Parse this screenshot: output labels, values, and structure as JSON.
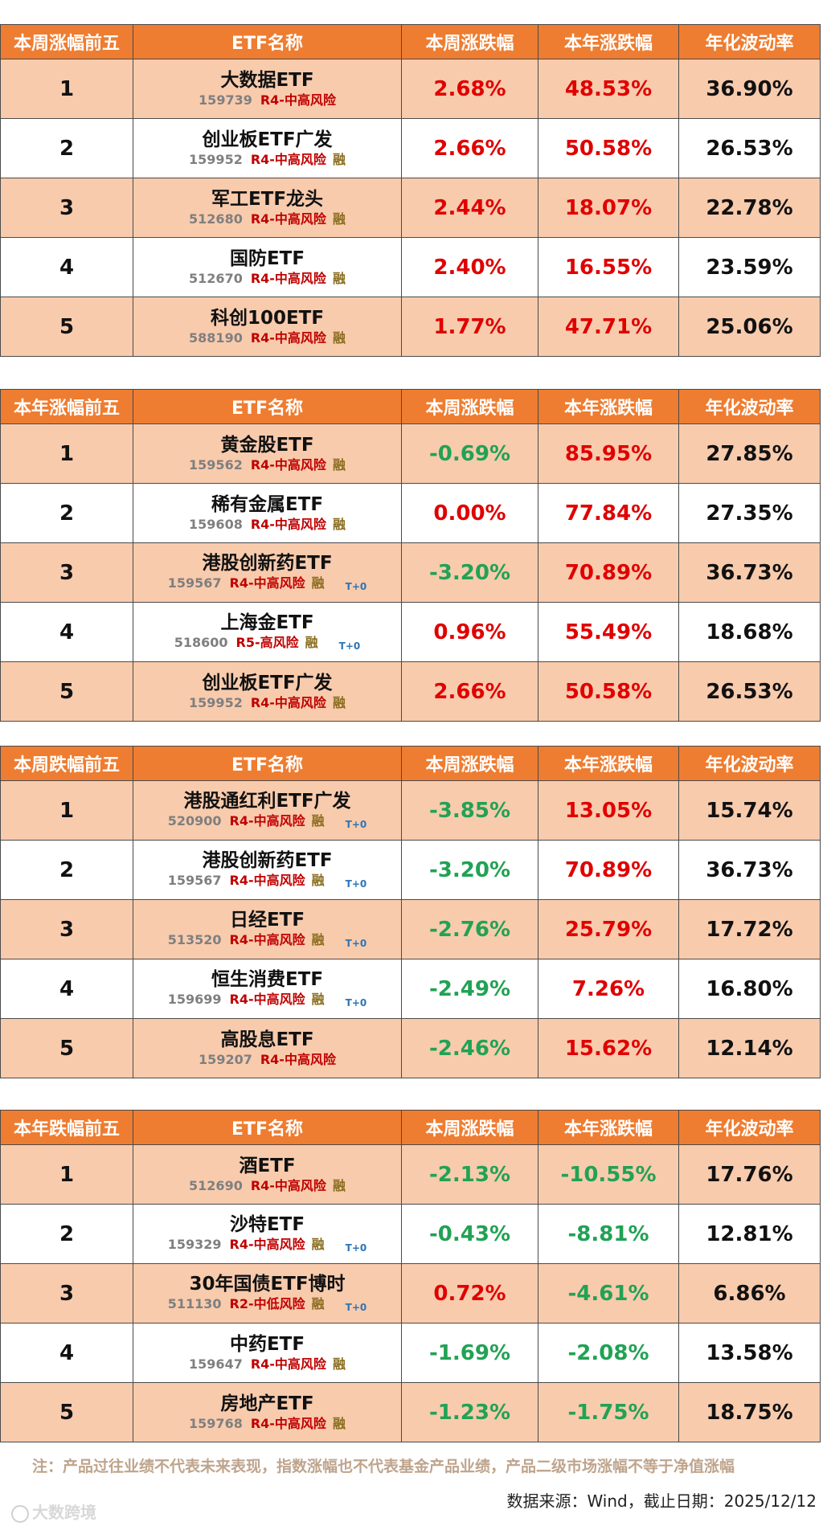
{
  "headers": [
    "ETF名称",
    "本周涨跌幅",
    "本年涨跌幅",
    "年化波动率"
  ],
  "tables": [
    {
      "title": "本周涨幅前五",
      "rows": [
        {
          "rank": "1",
          "name": "大数据ETF",
          "code": "159739",
          "risk": "R4-中高风险",
          "rong": "",
          "t0": "",
          "week": "2.68%",
          "year": "48.53%",
          "vol": "36.90%"
        },
        {
          "rank": "2",
          "name": "创业板ETF广发",
          "code": "159952",
          "risk": "R4-中高风险",
          "rong": "融",
          "t0": "",
          "week": "2.66%",
          "year": "50.58%",
          "vol": "26.53%"
        },
        {
          "rank": "3",
          "name": "军工ETF龙头",
          "code": "512680",
          "risk": "R4-中高风险",
          "rong": "融",
          "t0": "",
          "week": "2.44%",
          "year": "18.07%",
          "vol": "22.78%"
        },
        {
          "rank": "4",
          "name": "国防ETF",
          "code": "512670",
          "risk": "R4-中高风险",
          "rong": "融",
          "t0": "",
          "week": "2.40%",
          "year": "16.55%",
          "vol": "23.59%"
        },
        {
          "rank": "5",
          "name": "科创100ETF",
          "code": "588190",
          "risk": "R4-中高风险",
          "rong": "融",
          "t0": "",
          "week": "1.77%",
          "year": "47.71%",
          "vol": "25.06%"
        }
      ]
    },
    {
      "title": "本年涨幅前五",
      "rows": [
        {
          "rank": "1",
          "name": "黄金股ETF",
          "code": "159562",
          "risk": "R4-中高风险",
          "rong": "融",
          "t0": "",
          "week": "-0.69%",
          "year": "85.95%",
          "vol": "27.85%"
        },
        {
          "rank": "2",
          "name": "稀有金属ETF",
          "code": "159608",
          "risk": "R4-中高风险",
          "rong": "融",
          "t0": "",
          "week": "0.00%",
          "year": "77.84%",
          "vol": "27.35%"
        },
        {
          "rank": "3",
          "name": "港股创新药ETF",
          "code": "159567",
          "risk": "R4-中高风险",
          "rong": "融",
          "t0": "T+0",
          "week": "-3.20%",
          "year": "70.89%",
          "vol": "36.73%"
        },
        {
          "rank": "4",
          "name": "上海金ETF",
          "code": "518600",
          "risk": "R5-高风险",
          "rong": "融",
          "t0": "T+0",
          "week": "0.96%",
          "year": "55.49%",
          "vol": "18.68%"
        },
        {
          "rank": "5",
          "name": "创业板ETF广发",
          "code": "159952",
          "risk": "R4-中高风险",
          "rong": "融",
          "t0": "",
          "week": "2.66%",
          "year": "50.58%",
          "vol": "26.53%"
        }
      ]
    },
    {
      "title": "本周跌幅前五",
      "rows": [
        {
          "rank": "1",
          "name": "港股通红利ETF广发",
          "code": "520900",
          "risk": "R4-中高风险",
          "rong": "融",
          "t0": "T+0",
          "week": "-3.85%",
          "year": "13.05%",
          "vol": "15.74%"
        },
        {
          "rank": "2",
          "name": "港股创新药ETF",
          "code": "159567",
          "risk": "R4-中高风险",
          "rong": "融",
          "t0": "T+0",
          "week": "-3.20%",
          "year": "70.89%",
          "vol": "36.73%"
        },
        {
          "rank": "3",
          "name": "日经ETF",
          "code": "513520",
          "risk": "R4-中高风险",
          "rong": "融",
          "t0": "T+0",
          "week": "-2.76%",
          "year": "25.79%",
          "vol": "17.72%"
        },
        {
          "rank": "4",
          "name": "恒生消费ETF",
          "code": "159699",
          "risk": "R4-中高风险",
          "rong": "融",
          "t0": "T+0",
          "week": "-2.49%",
          "year": "7.26%",
          "vol": "16.80%"
        },
        {
          "rank": "5",
          "name": "高股息ETF",
          "code": "159207",
          "risk": "R4-中高风险",
          "rong": "",
          "t0": "",
          "week": "-2.46%",
          "year": "15.62%",
          "vol": "12.14%"
        }
      ]
    },
    {
      "title": "本年跌幅前五",
      "rows": [
        {
          "rank": "1",
          "name": "酒ETF",
          "code": "512690",
          "risk": "R4-中高风险",
          "rong": "融",
          "t0": "",
          "week": "-2.13%",
          "year": "-10.55%",
          "vol": "17.76%"
        },
        {
          "rank": "2",
          "name": "沙特ETF",
          "code": "159329",
          "risk": "R4-中高风险",
          "rong": "融",
          "t0": "T+0",
          "week": "-0.43%",
          "year": "-8.81%",
          "vol": "12.81%"
        },
        {
          "rank": "3",
          "name": "30年国债ETF博时",
          "code": "511130",
          "risk": "R2-中低风险",
          "rong": "融",
          "t0": "T+0",
          "week": "0.72%",
          "year": "-4.61%",
          "vol": "6.86%"
        },
        {
          "rank": "4",
          "name": "中药ETF",
          "code": "159647",
          "risk": "R4-中高风险",
          "rong": "融",
          "t0": "",
          "week": "-1.69%",
          "year": "-2.08%",
          "vol": "13.58%"
        },
        {
          "rank": "5",
          "name": "房地产ETF",
          "code": "159768",
          "risk": "R4-中高风险",
          "rong": "融",
          "t0": "",
          "week": "-1.23%",
          "year": "-1.75%",
          "vol": "18.75%"
        }
      ]
    }
  ],
  "note": "注：产品过往业绩不代表未来表现，指数涨幅也不代表基金产品业绩，产品二级市场涨幅不等于净值涨幅",
  "source": "数据来源：Wind，截止日期：2025/12/12",
  "watermark": "大数跨境",
  "colors": {
    "header": "#ee7d31",
    "odd_row": "#f8cbad",
    "positive": "#e00000",
    "negative": "#21a254",
    "risk": "#c00000"
  }
}
